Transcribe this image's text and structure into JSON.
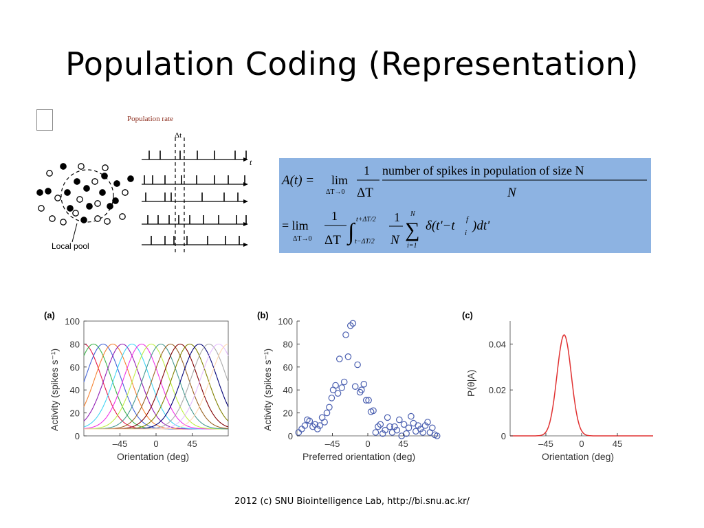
{
  "slide": {
    "title": "Population Coding (Representation)",
    "footer": "2012 (c) SNU Biointelligence Lab, http://bi.snu.ac.kr/"
  },
  "population_figure": {
    "heading": "Population rate",
    "delta_label": "Δt",
    "time_label": "t",
    "pool_label": "Local pool"
  },
  "equation": {
    "lhs": "A(t) =",
    "lim": "lim",
    "lim_sub": "ΔT→0",
    "one": "1",
    "dT": "ΔT",
    "numerator_text": "number of spikes in population of size N",
    "denominator_N": "N",
    "eq2": "= lim",
    "int_upper": "t+ΔT/2",
    "int_lower": "t−ΔT/2",
    "sum_upper": "N",
    "sum_lower": "i=1",
    "integrand": "δ(t'−t",
    "integrand_sup": "f",
    "integrand_sub": "i",
    "integrand_tail": ")dt'"
  },
  "chart_data": [
    {
      "type": "line",
      "panel_label": "(a)",
      "title": "",
      "xlabel": "Orientation (deg)",
      "ylabel": "Activity (spikes s⁻¹)",
      "xlim": [
        -90,
        90
      ],
      "ylim": [
        0,
        100
      ],
      "xticks": [
        "–45",
        "0",
        "45"
      ],
      "yticks": [
        "0",
        "20",
        "40",
        "60",
        "80",
        "100"
      ],
      "tuning_peak": 80,
      "baseline": 6,
      "preferred_orientations": [
        -90,
        -78,
        -66,
        -54,
        -42,
        -30,
        -18,
        -6,
        6,
        18,
        30,
        42,
        54,
        66,
        78,
        90
      ],
      "tuning_width_deg": 22,
      "series_colors": [
        "#e6194b",
        "#3cb44b",
        "#4363d8",
        "#f58231",
        "#911eb4",
        "#42d4f4",
        "#f032e6",
        "#bfef45",
        "#469990",
        "#9a6324",
        "#800000",
        "#808000",
        "#000075",
        "#a9a9a9",
        "#e6beff",
        "#ffd8b1"
      ]
    },
    {
      "type": "scatter",
      "panel_label": "(b)",
      "title": "",
      "xlabel": "Preferred orientation (deg)",
      "ylabel": "Activity (spikes s⁻¹)",
      "xlim": [
        -90,
        90
      ],
      "ylim": [
        0,
        100
      ],
      "xticks": [
        "–45",
        "0",
        "45"
      ],
      "yticks": [
        "0",
        "20",
        "40",
        "60",
        "80",
        "100"
      ],
      "marker_color": "#4a5fb0",
      "x": [
        -88,
        -84,
        -80,
        -77,
        -74,
        -70,
        -67,
        -64,
        -61,
        -58,
        -55,
        -52,
        -49,
        -46,
        -44,
        -41,
        -38,
        -36,
        -33,
        -30,
        -28,
        -25,
        -22,
        -19,
        -16,
        -13,
        -10,
        -8,
        -5,
        -2,
        1,
        4,
        7,
        10,
        13,
        16,
        19,
        22,
        25,
        28,
        31,
        34,
        37,
        40,
        43,
        46,
        49,
        52,
        55,
        58,
        61,
        64,
        67,
        70,
        73,
        76,
        79,
        82,
        85,
        88
      ],
      "y": [
        3,
        6,
        9,
        14,
        13,
        8,
        10,
        6,
        9,
        16,
        12,
        20,
        25,
        33,
        40,
        44,
        37,
        67,
        42,
        47,
        88,
        69,
        96,
        98,
        43,
        62,
        38,
        40,
        45,
        31,
        31,
        21,
        22,
        3,
        8,
        10,
        2,
        5,
        16,
        8,
        3,
        8,
        5,
        14,
        0,
        10,
        2,
        7,
        17,
        11,
        4,
        9,
        6,
        3,
        9,
        12,
        3,
        7,
        1,
        0
      ],
      "legend": []
    },
    {
      "type": "line",
      "panel_label": "(c)",
      "title": "",
      "xlabel": "Orientation (deg)",
      "ylabel": "P(θ|A)",
      "xlim": [
        -90,
        90
      ],
      "ylim": [
        0,
        0.05
      ],
      "xticks": [
        "–45",
        "0",
        "45"
      ],
      "yticks": [
        "0",
        "0.02",
        "0.04"
      ],
      "line_color": "#e03030",
      "peak_x": -22,
      "peak_y": 0.044,
      "sigma_deg": 9
    }
  ]
}
